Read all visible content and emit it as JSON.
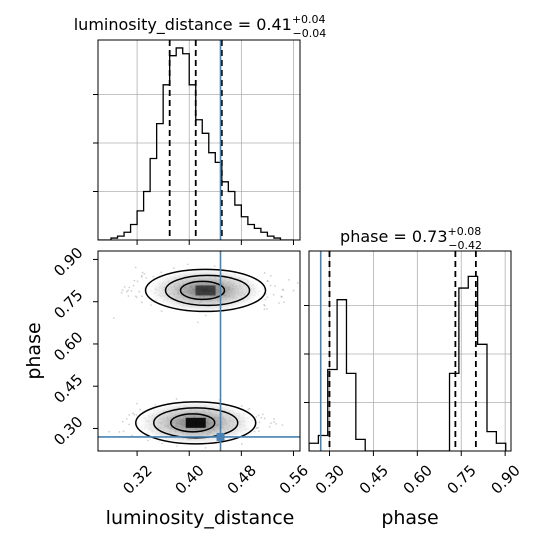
{
  "chart_data": {
    "type": "corner",
    "parameters": [
      "luminosity_distance",
      "phase"
    ],
    "truth": {
      "luminosity_distance": 0.448,
      "phase": 0.27
    },
    "truth_color": "#4682b4",
    "panels": [
      {
        "id": "hist-luminosity_distance",
        "type": "histogram",
        "parameter": "luminosity_distance",
        "title_name": "luminosity_distance",
        "title_value": "0.41",
        "title_plus": "+0.04",
        "title_minus": "−0.04",
        "xlim": [
          0.26,
          0.57
        ],
        "ymax": 1.0,
        "bin_edges": [
          0.26,
          0.28,
          0.29,
          0.3,
          0.31,
          0.32,
          0.33,
          0.34,
          0.35,
          0.36,
          0.37,
          0.38,
          0.39,
          0.4,
          0.41,
          0.42,
          0.43,
          0.44,
          0.45,
          0.46,
          0.47,
          0.48,
          0.49,
          0.5,
          0.51,
          0.52,
          0.53,
          0.54,
          0.55,
          0.56
        ],
        "counts": [
          0,
          0.01,
          0.02,
          0.04,
          0.08,
          0.15,
          0.25,
          0.42,
          0.6,
          0.8,
          0.95,
          0.99,
          0.96,
          0.8,
          0.62,
          0.55,
          0.45,
          0.4,
          0.3,
          0.25,
          0.18,
          0.12,
          0.08,
          0.06,
          0.04,
          0.02,
          0.01,
          0.0,
          0.0
        ],
        "quantiles": [
          0.37,
          0.41,
          0.45
        ],
        "yticks": [
          0.25,
          0.5,
          0.75
        ],
        "yticklabels": [
          "",
          "",
          ""
        ],
        "xticks": [
          0.32,
          0.4,
          0.48,
          0.56
        ],
        "xticklabels": [
          "",
          "",
          "",
          ""
        ]
      },
      {
        "id": "hist-phase",
        "type": "histogram",
        "parameter": "phase",
        "title_name": "phase",
        "title_value": "0.73",
        "title_plus": "+0.08",
        "title_minus": "−0.42",
        "xlim": [
          0.23,
          0.92
        ],
        "ymax": 1.0,
        "bin_edges": [
          0.23,
          0.262,
          0.294,
          0.326,
          0.358,
          0.39,
          0.422,
          0.454,
          0.486,
          0.518,
          0.55,
          0.582,
          0.614,
          0.646,
          0.678,
          0.71,
          0.742,
          0.774,
          0.806,
          0.838,
          0.87,
          0.902
        ],
        "counts": [
          0.04,
          0.08,
          0.42,
          0.78,
          0.4,
          0.06,
          0,
          0,
          0,
          0,
          0,
          0,
          0,
          0,
          0,
          0.4,
          0.84,
          0.9,
          0.55,
          0.1,
          0.04
        ],
        "quantiles": [
          0.3,
          0.73,
          0.8
        ],
        "yticks": [
          0.25,
          0.5,
          0.75
        ],
        "yticklabels": [
          "",
          "",
          ""
        ],
        "xticks": [
          0.3,
          0.45,
          0.6,
          0.75,
          0.9
        ],
        "xticklabels": [
          "0.30",
          "0.45",
          "0.60",
          "0.75",
          "0.90"
        ],
        "xlabel": "phase"
      },
      {
        "id": "joint",
        "type": "density2d",
        "x_parameter": "luminosity_distance",
        "y_parameter": "phase",
        "xlim": [
          0.26,
          0.57
        ],
        "ylim": [
          0.22,
          0.93
        ],
        "modes": [
          {
            "x": 0.425,
            "y": 0.79,
            "sx": 0.04,
            "sy": 0.04
          },
          {
            "x": 0.41,
            "y": 0.32,
            "sx": 0.035,
            "sy": 0.04
          }
        ],
        "xticks": [
          0.32,
          0.4,
          0.48,
          0.56
        ],
        "xticklabels": [
          "0.32",
          "0.40",
          "0.48",
          "0.56"
        ],
        "yticks": [
          0.3,
          0.45,
          0.6,
          0.75,
          0.9
        ],
        "yticklabels": [
          "0.30",
          "0.45",
          "0.60",
          "0.75",
          "0.90"
        ],
        "xlabel": "luminosity_distance",
        "ylabel": "phase"
      }
    ]
  }
}
